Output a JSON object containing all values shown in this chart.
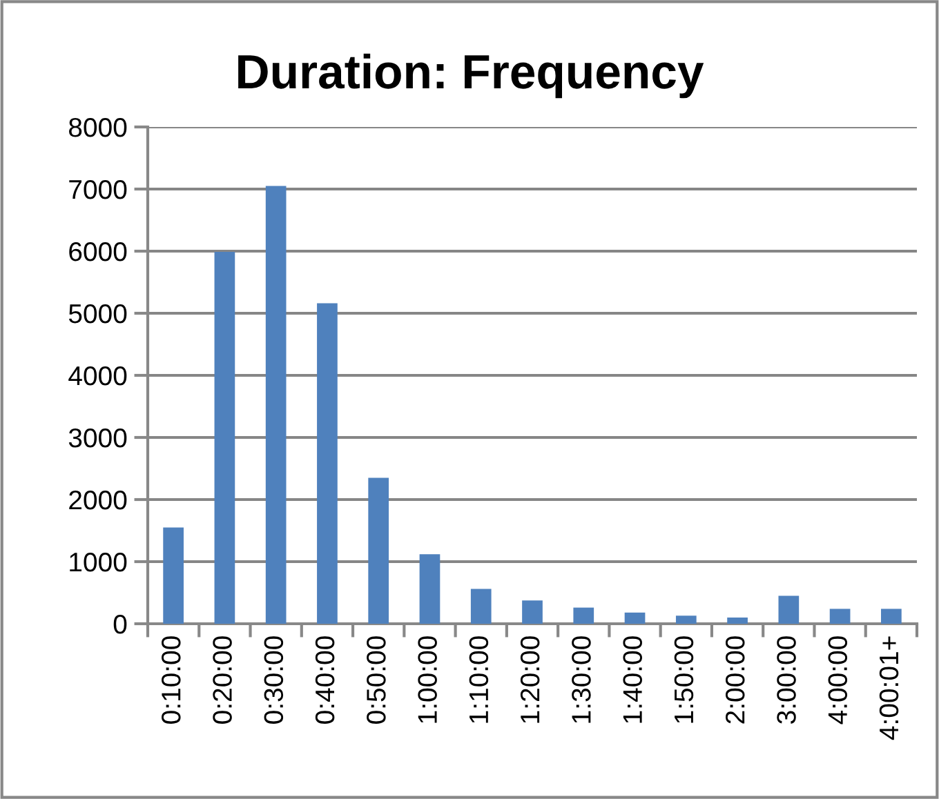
{
  "chart_data": {
    "type": "bar",
    "title": "Duration: Frequency",
    "categories": [
      "0:10:00",
      "0:20:00",
      "0:30:00",
      "0:40:00",
      "0:50:00",
      "1:00:00",
      "1:10:00",
      "1:20:00",
      "1:30:00",
      "1:40:00",
      "1:50:00",
      "2:00:00",
      "3:00:00",
      "4:00:00",
      "4:00:01+"
    ],
    "values": [
      1550,
      5990,
      7050,
      5160,
      2350,
      1120,
      560,
      375,
      260,
      180,
      130,
      100,
      450,
      240,
      240
    ],
    "color": "#4f81bd",
    "ylim": [
      0,
      8000
    ],
    "yticks": [
      0,
      1000,
      2000,
      3000,
      4000,
      5000,
      6000,
      7000,
      8000
    ],
    "grid": "y"
  }
}
